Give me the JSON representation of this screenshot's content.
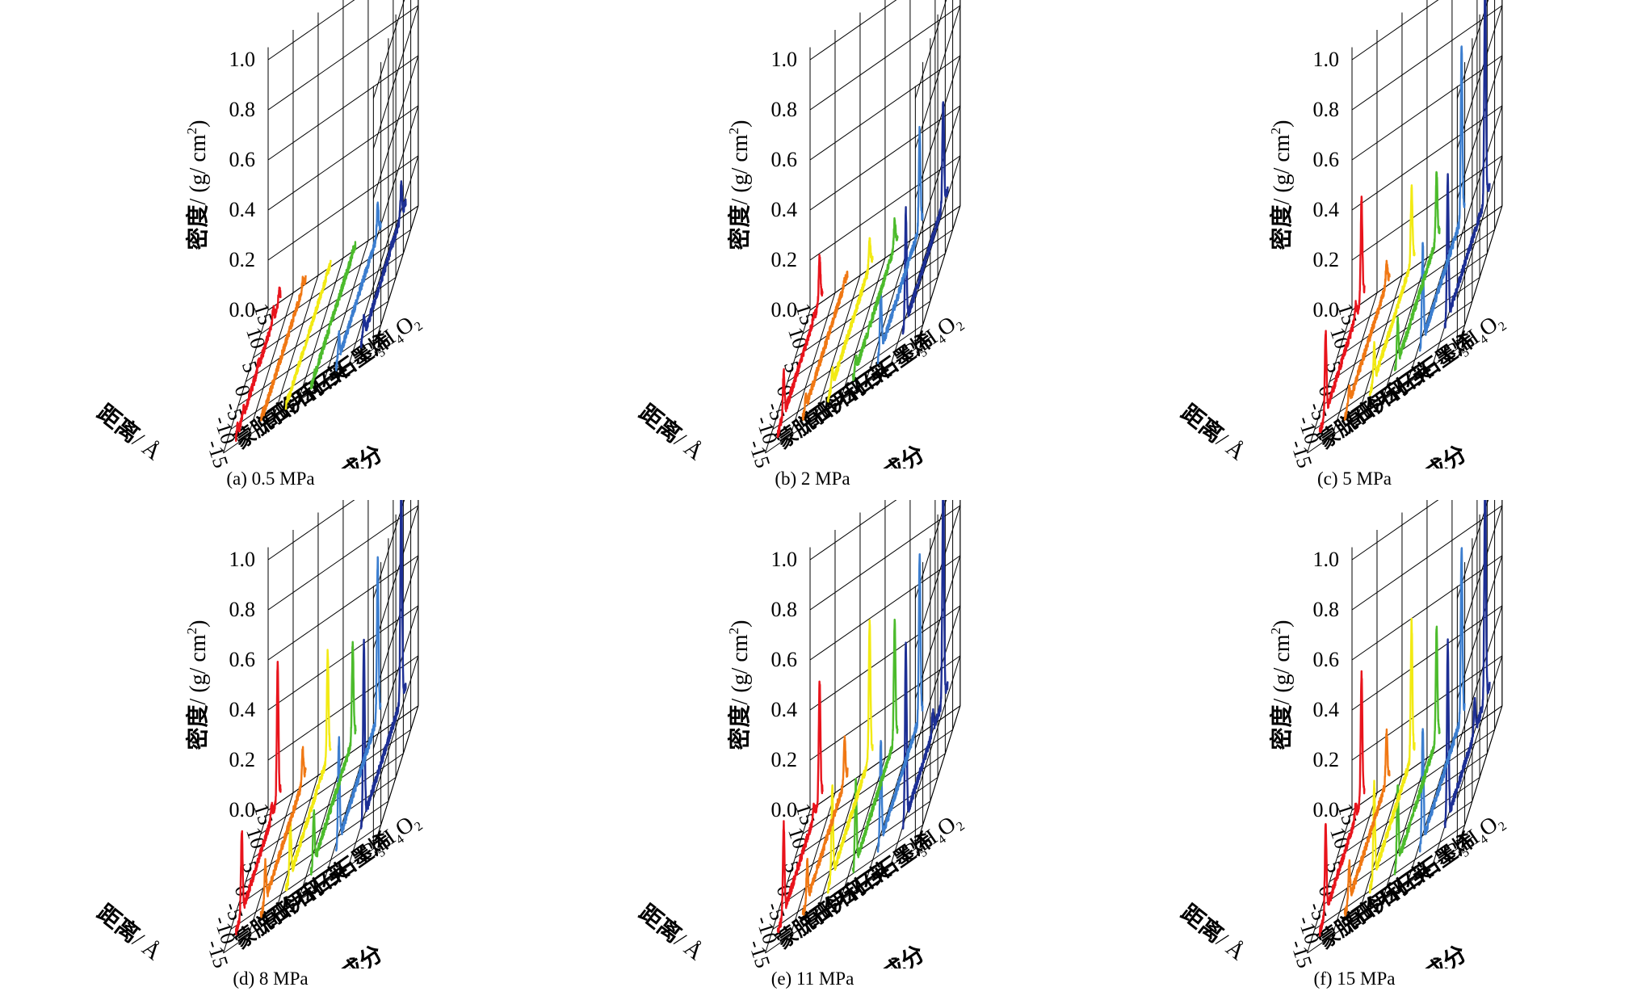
{
  "figure": {
    "axes_text": {
      "z_title": "密度",
      "z_unit_open": "/ (g/ cm",
      "z_unit_sup": "2",
      "z_unit_close": ")",
      "x_title": "距离",
      "x_unit": "/ Å",
      "y_title": "页岩成分",
      "z_ticks": [
        "0.0",
        "0.2",
        "0.4",
        "0.6",
        "0.8",
        "1.0"
      ],
      "x_ticks": [
        "15",
        "10",
        "5",
        "0",
        "-5",
        "-10",
        "-15"
      ],
      "y_categories": [
        "蒙脱石",
        "高岭石",
        "伊利石",
        "石英",
        "石墨烯",
        "C5H4O2"
      ]
    },
    "colors": {
      "蒙脱石": "#e8141c",
      "高岭石": "#f07814",
      "伊利石": "#f2ea14",
      "石英": "#4cbb2c",
      "石墨烯": "#3c7ecf",
      "C5H4O2": "#1d2f94"
    },
    "panels": [
      {
        "caption": "(a) 0.5 MPa"
      },
      {
        "caption": "(b) 2 MPa"
      },
      {
        "caption": "(c) 5 MPa"
      },
      {
        "caption": "(d) 8 MPa"
      },
      {
        "caption": "(e) 11 MPa"
      },
      {
        "caption": "(f) 15 MPa"
      }
    ]
  },
  "chart_data": [
    {
      "type": "line",
      "subplot": "(a) 0.5 MPa",
      "x_range": [
        15,
        -15
      ],
      "z_range": [
        0,
        1.0
      ],
      "xlabel": "距离/Å",
      "ylabel": "页岩成分",
      "zlabel": "密度/(g/cm2)",
      "series": [
        {
          "name": "蒙脱石",
          "peaks": [
            [
              -14,
              0.05
            ],
            [
              -10,
              0.05
            ],
            [
              0,
              0.04
            ],
            [
              10,
              0.06
            ],
            [
              14,
              0.06
            ]
          ],
          "baseline": 0.02
        },
        {
          "name": "高岭石",
          "peaks": [
            [
              -14,
              0.04
            ],
            [
              13,
              0.05
            ]
          ],
          "baseline": 0.02
        },
        {
          "name": "伊利石",
          "peaks": [
            [
              -14,
              0.02
            ],
            [
              13,
              0.02
            ]
          ],
          "baseline": 0.01
        },
        {
          "name": "石英",
          "peaks": [
            [
              -13,
              0.03
            ],
            [
              13,
              0.03
            ]
          ],
          "baseline": 0.02
        },
        {
          "name": "石墨烯",
          "peaks": [
            [
              -13,
              0.12
            ],
            [
              13,
              0.15
            ]
          ],
          "baseline": 0.03
        },
        {
          "name": "C5H4O2",
          "peaks": [
            [
              -13,
              0.12
            ],
            [
              12,
              0.18
            ],
            [
              5,
              0.06
            ]
          ],
          "baseline": 0.05
        }
      ]
    },
    {
      "type": "line",
      "subplot": "(b) 2 MPa",
      "x_range": [
        15,
        -15
      ],
      "z_range": [
        0,
        1.0
      ],
      "series": [
        {
          "name": "蒙脱石",
          "peaks": [
            [
              -11,
              0.22
            ],
            [
              -13,
              0.05
            ],
            [
              13,
              0.22
            ],
            [
              9,
              0.06
            ]
          ],
          "baseline": 0.04
        },
        {
          "name": "高岭石",
          "peaks": [
            [
              -13,
              0.08
            ],
            [
              13,
              0.05
            ]
          ],
          "baseline": 0.04
        },
        {
          "name": "伊利石",
          "peaks": [
            [
              -12,
              0.1
            ],
            [
              13,
              0.14
            ]
          ],
          "baseline": 0.04
        },
        {
          "name": "石英",
          "peaks": [
            [
              -13,
              0.1
            ],
            [
              13,
              0.15
            ]
          ],
          "baseline": 0.05
        },
        {
          "name": "石墨烯",
          "peaks": [
            [
              -13,
              0.3
            ],
            [
              13,
              0.45
            ]
          ],
          "baseline": 0.06
        },
        {
          "name": "C5H4O2",
          "peaks": [
            [
              -13,
              0.55
            ],
            [
              12,
              0.52
            ],
            [
              6,
              0.1
            ]
          ],
          "baseline": 0.1
        }
      ]
    },
    {
      "type": "line",
      "subplot": "(c) 5 MPa",
      "x_range": [
        15,
        -15
      ],
      "z_range": [
        0,
        1.0
      ],
      "series": [
        {
          "name": "蒙脱石",
          "peaks": [
            [
              -11,
              0.38
            ],
            [
              13,
              0.45
            ],
            [
              9,
              0.1
            ]
          ],
          "baseline": 0.05
        },
        {
          "name": "高岭石",
          "peaks": [
            [
              -12,
              0.1
            ],
            [
              13,
              0.12
            ]
          ],
          "baseline": 0.04
        },
        {
          "name": "伊利石",
          "peaks": [
            [
              -12,
              0.2
            ],
            [
              13,
              0.35
            ]
          ],
          "baseline": 0.06
        },
        {
          "name": "石英",
          "peaks": [
            [
              -13,
              0.25
            ],
            [
              13,
              0.35
            ]
          ],
          "baseline": 0.08
        },
        {
          "name": "石墨烯",
          "peaks": [
            [
              -13,
              0.48
            ],
            [
              13,
              0.78
            ]
          ],
          "baseline": 0.1
        },
        {
          "name": "C5H4O2",
          "peaks": [
            [
              -13,
              0.68
            ],
            [
              12,
              1.02
            ],
            [
              5,
              0.12
            ]
          ],
          "baseline": 0.12
        }
      ]
    },
    {
      "type": "line",
      "subplot": "(d) 8 MPa",
      "x_range": [
        15,
        -15
      ],
      "z_range": [
        0,
        1.0
      ],
      "series": [
        {
          "name": "蒙脱石",
          "peaks": [
            [
              -11,
              0.38
            ],
            [
              13,
              0.58
            ],
            [
              9,
              0.1
            ]
          ],
          "baseline": 0.05
        },
        {
          "name": "高岭石",
          "peaks": [
            [
              -12,
              0.2
            ],
            [
              13,
              0.18
            ]
          ],
          "baseline": 0.05
        },
        {
          "name": "伊利石",
          "peaks": [
            [
              -12,
              0.3
            ],
            [
              13,
              0.5
            ]
          ],
          "baseline": 0.08
        },
        {
          "name": "石英",
          "peaks": [
            [
              -13,
              0.28
            ],
            [
              13,
              0.46
            ]
          ],
          "baseline": 0.08
        },
        {
          "name": "石墨烯",
          "peaks": [
            [
              -13,
              0.5
            ],
            [
              13,
              0.72
            ]
          ],
          "baseline": 0.1
        },
        {
          "name": "C5H4O2",
          "peaks": [
            [
              -13,
              0.82
            ],
            [
              12,
              1.02
            ],
            [
              5,
              0.12
            ]
          ],
          "baseline": 0.12
        }
      ]
    },
    {
      "type": "line",
      "subplot": "(e) 11 MPa",
      "x_range": [
        15,
        -15
      ],
      "z_range": [
        0,
        1.0
      ],
      "series": [
        {
          "name": "蒙脱石",
          "peaks": [
            [
              -11,
              0.4
            ],
            [
              13,
              0.52
            ],
            [
              9,
              0.1
            ]
          ],
          "baseline": 0.05
        },
        {
          "name": "高岭石",
          "peaks": [
            [
              -12,
              0.2
            ],
            [
              13,
              0.22
            ]
          ],
          "baseline": 0.05
        },
        {
          "name": "伊利石",
          "peaks": [
            [
              -12,
              0.44
            ],
            [
              13,
              0.62
            ]
          ],
          "baseline": 0.08
        },
        {
          "name": "石英",
          "peaks": [
            [
              -13,
              0.4
            ],
            [
              13,
              0.55
            ]
          ],
          "baseline": 0.08
        },
        {
          "name": "石墨烯",
          "peaks": [
            [
              -13,
              0.5
            ],
            [
              13,
              0.75
            ]
          ],
          "baseline": 0.1
        },
        {
          "name": "C5H4O2",
          "peaks": [
            [
              -13,
              0.82
            ],
            [
              12,
              1.02
            ],
            [
              5,
              0.2
            ]
          ],
          "baseline": 0.12
        }
      ]
    },
    {
      "type": "line",
      "subplot": "(f) 15 MPa",
      "x_range": [
        15,
        -15
      ],
      "z_range": [
        0,
        1.0
      ],
      "series": [
        {
          "name": "蒙脱石",
          "peaks": [
            [
              -11,
              0.4
            ],
            [
              13,
              0.55
            ],
            [
              9,
              0.1
            ]
          ],
          "baseline": 0.05
        },
        {
          "name": "高岭石",
          "peaks": [
            [
              -12,
              0.2
            ],
            [
              13,
              0.25
            ]
          ],
          "baseline": 0.05
        },
        {
          "name": "伊利石",
          "peaks": [
            [
              -12,
              0.45
            ],
            [
              13,
              0.62
            ]
          ],
          "baseline": 0.08
        },
        {
          "name": "石英",
          "peaks": [
            [
              -13,
              0.4
            ],
            [
              13,
              0.52
            ]
          ],
          "baseline": 0.08
        },
        {
          "name": "石墨烯",
          "peaks": [
            [
              -13,
              0.55
            ],
            [
              13,
              0.78
            ]
          ],
          "baseline": 0.1
        },
        {
          "name": "C5H4O2",
          "peaks": [
            [
              -13,
              0.82
            ],
            [
              12,
              1.0
            ],
            [
              5,
              0.25
            ]
          ],
          "baseline": 0.12
        }
      ]
    }
  ]
}
